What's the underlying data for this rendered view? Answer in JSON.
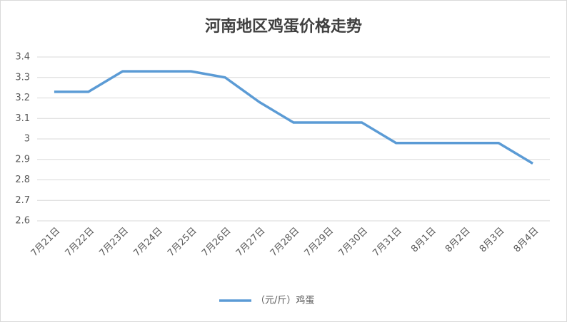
{
  "chart_data": {
    "type": "line",
    "title": "河南地区鸡蛋价格走势",
    "categories": [
      "7月21日",
      "7月22日",
      "7月23日",
      "7月24日",
      "7月25日",
      "7月26日",
      "7月27日",
      "7月28日",
      "7月29日",
      "7月30日",
      "7月31日",
      "8月1日",
      "8月2日",
      "8月3日",
      "8月4日"
    ],
    "series": [
      {
        "name": "（元/斤）鸡蛋",
        "color": "#5b9bd5",
        "values": [
          3.23,
          3.23,
          3.33,
          3.33,
          3.33,
          3.3,
          3.18,
          3.08,
          3.08,
          3.08,
          2.98,
          2.98,
          2.98,
          2.98,
          2.88
        ]
      }
    ],
    "ylim": [
      2.6,
      3.4
    ],
    "yticks": [
      2.6,
      2.7,
      2.8,
      2.9,
      3,
      3.1,
      3.2,
      3.3,
      3.4
    ],
    "grid": true,
    "legend": "bottom"
  }
}
